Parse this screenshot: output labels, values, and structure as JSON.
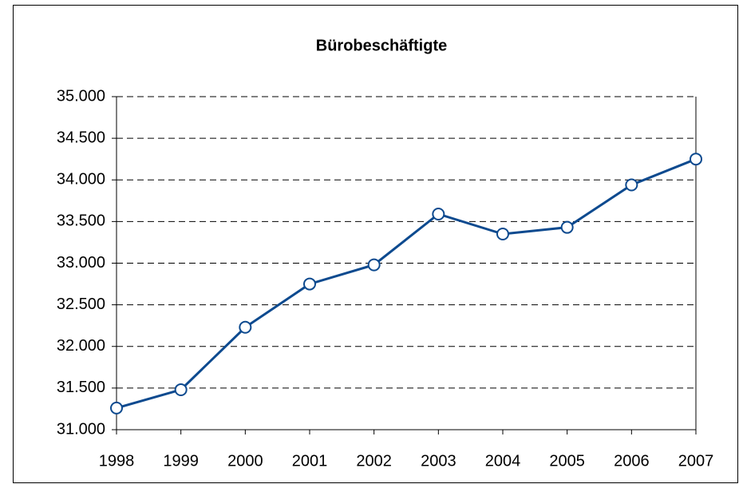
{
  "chart_data": {
    "type": "line",
    "title": "Bürobeschäftigte",
    "categories": [
      "1998",
      "1999",
      "2000",
      "2001",
      "2002",
      "2003",
      "2004",
      "2005",
      "2006",
      "2007"
    ],
    "series": [
      {
        "name": "Bürobeschäftigte",
        "color": "#0d4a8f",
        "values": [
          31260,
          31480,
          32230,
          32750,
          32980,
          33590,
          33350,
          33430,
          33940,
          34250
        ]
      }
    ],
    "ylim": [
      31000,
      35000
    ],
    "yticks": [
      {
        "value": 31000,
        "label": "31.000"
      },
      {
        "value": 31500,
        "label": "31.500"
      },
      {
        "value": 32000,
        "label": "32.000"
      },
      {
        "value": 32500,
        "label": "32.500"
      },
      {
        "value": 33000,
        "label": "33.000"
      },
      {
        "value": 33500,
        "label": "33.500"
      },
      {
        "value": 34000,
        "label": "34.000"
      },
      {
        "value": 34500,
        "label": "34.500"
      },
      {
        "value": 35000,
        "label": "35.000"
      }
    ],
    "grid": true,
    "legend": false
  }
}
